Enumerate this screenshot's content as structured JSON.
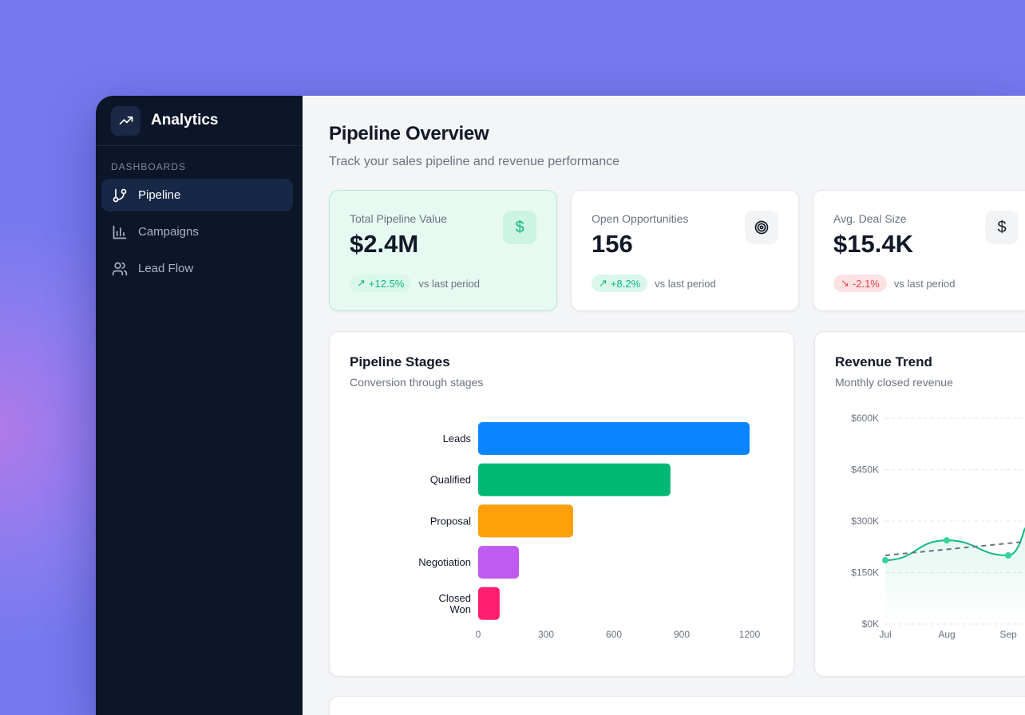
{
  "app": {
    "title": "Analytics",
    "icon": "trending-up-icon"
  },
  "sidebar": {
    "section": "DASHBOARDS",
    "items": [
      {
        "label": "Pipeline",
        "icon": "git-branch-icon",
        "active": true
      },
      {
        "label": "Campaigns",
        "icon": "bar-chart-icon",
        "active": false
      },
      {
        "label": "Lead Flow",
        "icon": "users-icon",
        "active": false
      }
    ]
  },
  "header": {
    "title": "Pipeline Overview",
    "subtitle": "Track your sales pipeline and revenue performance"
  },
  "kpis": [
    {
      "label": "Total Pipeline Value",
      "value": "$2.4M",
      "change": "+12.5%",
      "trend": "up",
      "note": "vs last period",
      "icon": "dollar-icon"
    },
    {
      "label": "Open Opportunities",
      "value": "156",
      "change": "+8.2%",
      "trend": "up",
      "note": "vs last period",
      "icon": "target-icon"
    },
    {
      "label": "Avg. Deal Size",
      "value": "$15.4K",
      "change": "-2.1%",
      "trend": "down",
      "note": "vs last period",
      "icon": "dollar-icon"
    }
  ],
  "colors": {
    "accent": "#10b981",
    "negative": "#ef4444",
    "sidebar": "#0c1628"
  },
  "chart_data": [
    {
      "type": "bar",
      "orientation": "horizontal",
      "title": "Pipeline Stages",
      "subtitle": "Conversion through stages",
      "categories": [
        "Leads",
        "Qualified",
        "Proposal",
        "Negotiation",
        "Closed Won"
      ],
      "values": [
        1200,
        850,
        420,
        180,
        95
      ],
      "colors": [
        "#0a84ff",
        "#00b874",
        "#ff9f0a",
        "#bf5af2",
        "#ff1f6e"
      ],
      "xticks": [
        "0",
        "300",
        "600",
        "900",
        "1200"
      ],
      "xlim": [
        0,
        1200
      ],
      "grid": false
    },
    {
      "type": "line",
      "title": "Revenue Trend",
      "subtitle": "Monthly closed revenue",
      "categories": [
        "Jul",
        "Aug",
        "Sep"
      ],
      "series": [
        {
          "values": [
            186000,
            244000,
            200000
          ],
          "color": "#10b981"
        }
      ],
      "trend": {
        "values": [
          200000,
          240000
        ],
        "style": "dashed"
      },
      "yticks": [
        "$0K",
        "$150K",
        "$300K",
        "$450K",
        "$600K"
      ],
      "ylim": [
        0,
        600000
      ],
      "grid": true
    }
  ]
}
